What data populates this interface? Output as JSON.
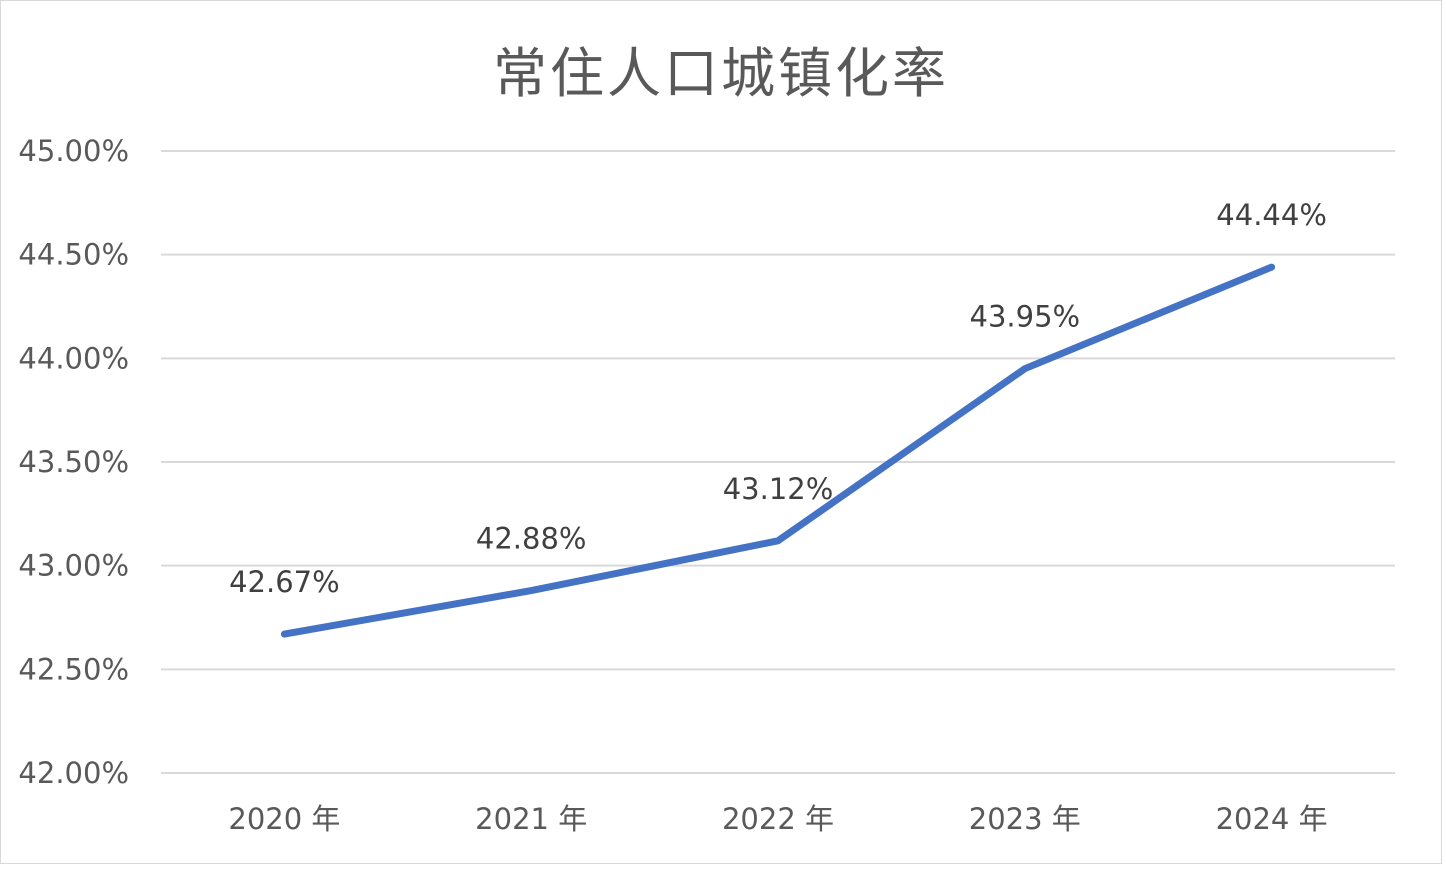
{
  "chart_data": {
    "type": "line",
    "title": "常住人口城镇化率",
    "categories": [
      "2020 年",
      "2021 年",
      "2022 年",
      "2023 年",
      "2024 年"
    ],
    "series": [
      {
        "values": [
          42.67,
          42.88,
          43.12,
          43.95,
          44.44
        ],
        "labels": [
          "42.67%",
          "42.88%",
          "43.12%",
          "43.95%",
          "44.44%"
        ]
      }
    ],
    "y_ticks": [
      "42.00%",
      "42.50%",
      "43.00%",
      "43.50%",
      "44.00%",
      "44.50%",
      "45.00%"
    ],
    "y_tick_values": [
      42.0,
      42.5,
      43.0,
      43.5,
      44.0,
      44.5,
      45.0
    ],
    "ylim": [
      42.0,
      45.0
    ],
    "xlabel": "",
    "ylabel": "",
    "grid": true,
    "legend": "none",
    "line_color": "#4472c4",
    "grid_color": "#d9d9d9"
  }
}
